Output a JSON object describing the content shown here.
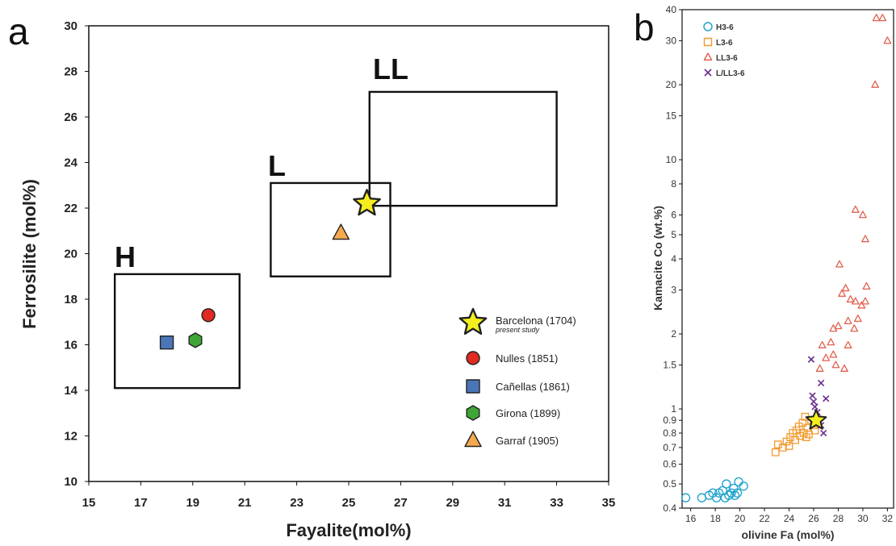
{
  "panels": {
    "a": "a",
    "b": "b"
  },
  "chart_data": [
    {
      "type": "scatter",
      "panel": "a",
      "xlabel": "Fayalite(mol%)",
      "ylabel": "Ferrosilite (mol%)",
      "xlim": [
        15,
        35
      ],
      "ylim": [
        10,
        30
      ],
      "xticks": [
        15,
        17,
        19,
        21,
        23,
        25,
        27,
        29,
        31,
        33,
        35
      ],
      "yticks": [
        10,
        12,
        14,
        16,
        18,
        20,
        22,
        24,
        26,
        28,
        30
      ],
      "regions": [
        {
          "label": "H",
          "x": [
            16,
            20.8
          ],
          "y": [
            14.1,
            19.1
          ]
        },
        {
          "label": "L",
          "x": [
            22,
            26.6
          ],
          "y": [
            19.0,
            23.1
          ]
        },
        {
          "label": "LL",
          "x": [
            25.8,
            33.0
          ],
          "y": [
            22.1,
            27.1
          ]
        }
      ],
      "points": [
        {
          "name": "Barcelona (1704)",
          "note": "present study",
          "x": 25.7,
          "y": 22.2,
          "marker": "star",
          "color": "#f5ee1e"
        },
        {
          "name": "Nulles (1851)",
          "note": "",
          "x": 19.6,
          "y": 17.3,
          "marker": "circle",
          "color": "#e02a22"
        },
        {
          "name": "Cañellas (1861)",
          "note": "",
          "x": 18.0,
          "y": 16.1,
          "marker": "square",
          "color": "#4a76b8"
        },
        {
          "name": "Girona (1899)",
          "note": "",
          "x": 19.1,
          "y": 16.2,
          "marker": "hexagon",
          "color": "#3fa535"
        },
        {
          "name": "Garraf (1905)",
          "note": "",
          "x": 24.7,
          "y": 20.9,
          "marker": "triangle",
          "color": "#f4a94f"
        }
      ]
    },
    {
      "type": "scatter",
      "panel": "b",
      "xlabel": "olivine Fa (mol%)",
      "ylabel": "Kamacite Co (wt.%)",
      "xlim": [
        15.3,
        32.5
      ],
      "ylim": [
        0.4,
        40
      ],
      "yscale": "log",
      "xticks": [
        16,
        18,
        20,
        22,
        24,
        26,
        28,
        30,
        32
      ],
      "yticks": [
        0.4,
        0.5,
        0.6,
        0.7,
        0.8,
        0.9,
        1,
        1.5,
        2,
        3,
        4,
        5,
        6,
        8,
        10,
        15,
        20,
        30,
        40
      ],
      "series": [
        {
          "name": "H3-6",
          "marker": "circle",
          "color": "#1aa0cc",
          "points": [
            [
              15.6,
              0.44
            ],
            [
              16.9,
              0.44
            ],
            [
              17.5,
              0.45
            ],
            [
              17.8,
              0.46
            ],
            [
              18.1,
              0.44
            ],
            [
              18.3,
              0.46
            ],
            [
              18.6,
              0.47
            ],
            [
              18.8,
              0.44
            ],
            [
              18.9,
              0.5
            ],
            [
              19.1,
              0.45
            ],
            [
              19.3,
              0.46
            ],
            [
              19.5,
              0.48
            ],
            [
              19.6,
              0.45
            ],
            [
              19.8,
              0.46
            ],
            [
              19.9,
              0.51
            ],
            [
              20.3,
              0.49
            ]
          ]
        },
        {
          "name": "L3-6",
          "marker": "square",
          "color": "#f29a2e",
          "points": [
            [
              22.9,
              0.67
            ],
            [
              23.1,
              0.72
            ],
            [
              23.5,
              0.7
            ],
            [
              23.8,
              0.74
            ],
            [
              24.0,
              0.71
            ],
            [
              24.1,
              0.77
            ],
            [
              24.3,
              0.8
            ],
            [
              24.5,
              0.75
            ],
            [
              24.6,
              0.82
            ],
            [
              24.8,
              0.85
            ],
            [
              24.9,
              0.78
            ],
            [
              25.1,
              0.88
            ],
            [
              25.2,
              0.8
            ],
            [
              25.3,
              0.93
            ],
            [
              25.4,
              0.77
            ],
            [
              25.5,
              0.84
            ],
            [
              25.6,
              0.79
            ],
            [
              25.8,
              0.9
            ],
            [
              26.0,
              0.86
            ],
            [
              26.1,
              0.82
            ]
          ]
        },
        {
          "name": "LL3-6",
          "marker": "triangle",
          "color": "#e2604e",
          "points": [
            [
              26.5,
              1.45
            ],
            [
              26.7,
              1.8
            ],
            [
              27.0,
              1.6
            ],
            [
              27.4,
              1.85
            ],
            [
              27.6,
              1.65
            ],
            [
              27.8,
              1.5
            ],
            [
              27.6,
              2.1
            ],
            [
              28.0,
              2.15
            ],
            [
              28.3,
              2.9
            ],
            [
              28.5,
              1.45
            ],
            [
              28.6,
              3.05
            ],
            [
              28.8,
              1.8
            ],
            [
              28.8,
              2.25
            ],
            [
              29.0,
              2.75
            ],
            [
              29.3,
              2.1
            ],
            [
              29.4,
              2.7
            ],
            [
              29.6,
              2.3
            ],
            [
              29.9,
              2.6
            ],
            [
              30.2,
              2.7
            ],
            [
              30.3,
              3.1
            ],
            [
              28.1,
              3.8
            ],
            [
              29.4,
              6.3
            ],
            [
              30.0,
              6.0
            ],
            [
              30.2,
              4.8
            ],
            [
              31.0,
              20
            ],
            [
              31.1,
              37
            ],
            [
              31.6,
              37
            ],
            [
              32.0,
              30
            ]
          ]
        },
        {
          "name": "L/LL3-6",
          "marker": "x",
          "color": "#6a2c8e",
          "points": [
            [
              25.8,
              1.58
            ],
            [
              25.9,
              1.13
            ],
            [
              26.0,
              1.07
            ],
            [
              26.1,
              1.02
            ],
            [
              26.3,
              0.97
            ],
            [
              26.6,
              1.27
            ],
            [
              27.0,
              1.1
            ],
            [
              26.3,
              0.9
            ],
            [
              26.8,
              0.8
            ],
            [
              26.6,
              0.86
            ]
          ]
        }
      ],
      "highlight": {
        "name": "Barcelona (1704)",
        "marker": "star",
        "color": "#f5ee1e",
        "x": 26.2,
        "y": 0.9
      }
    }
  ]
}
